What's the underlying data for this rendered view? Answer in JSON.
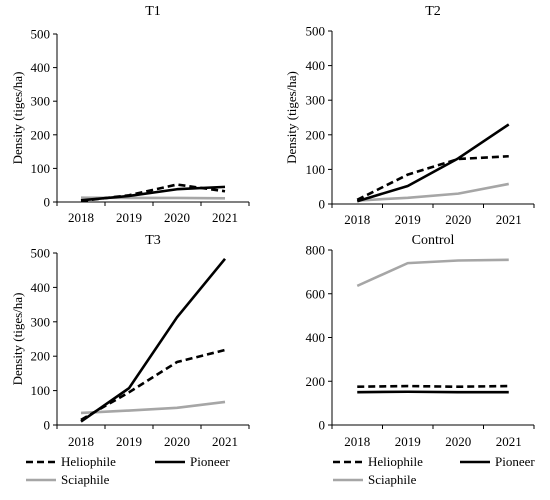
{
  "chart_data": [
    {
      "type": "line",
      "title": "T1",
      "ylabel": "Density (tiges/ha)",
      "xlabel": "",
      "categories": [
        "2018",
        "2019",
        "2020",
        "2021"
      ],
      "ylim": [
        0,
        500
      ],
      "yticks": [
        0,
        100,
        200,
        300,
        400,
        500
      ],
      "series": [
        {
          "name": "Heliophile",
          "values": [
            3,
            20,
            52,
            32
          ],
          "color": "#000000",
          "dash": "dashed"
        },
        {
          "name": "Pioneer",
          "values": [
            5,
            18,
            38,
            45
          ],
          "color": "#000000",
          "dash": "solid"
        },
        {
          "name": "Sciaphile",
          "values": [
            13,
            12,
            12,
            11
          ],
          "color": "#a6a6a6",
          "dash": "solid"
        }
      ]
    },
    {
      "type": "line",
      "title": "T2",
      "ylabel": "Density (tiges/ha)",
      "xlabel": "",
      "categories": [
        "2018",
        "2019",
        "2020",
        "2021"
      ],
      "ylim": [
        0,
        500
      ],
      "yticks": [
        0,
        100,
        200,
        300,
        400,
        500
      ],
      "series": [
        {
          "name": "Heliophile",
          "values": [
            12,
            85,
            130,
            138
          ],
          "color": "#000000",
          "dash": "dashed"
        },
        {
          "name": "Pioneer",
          "values": [
            8,
            52,
            132,
            230
          ],
          "color": "#000000",
          "dash": "solid"
        },
        {
          "name": "Sciaphile",
          "values": [
            10,
            18,
            30,
            58
          ],
          "color": "#a6a6a6",
          "dash": "solid"
        }
      ]
    },
    {
      "type": "line",
      "title": "T3",
      "ylabel": "Density (tiges/ha)",
      "xlabel": "",
      "categories": [
        "2018",
        "2019",
        "2020",
        "2021"
      ],
      "ylim": [
        0,
        500
      ],
      "yticks": [
        0,
        100,
        200,
        300,
        400,
        500
      ],
      "series": [
        {
          "name": "Heliophile",
          "values": [
            15,
            95,
            183,
            218
          ],
          "color": "#000000",
          "dash": "dashed"
        },
        {
          "name": "Pioneer",
          "values": [
            10,
            107,
            313,
            483
          ],
          "color": "#000000",
          "dash": "solid"
        },
        {
          "name": "Sciaphile",
          "values": [
            35,
            42,
            50,
            67
          ],
          "color": "#a6a6a6",
          "dash": "solid"
        }
      ]
    },
    {
      "type": "line",
      "title": "Control",
      "ylabel": "",
      "xlabel": "",
      "categories": [
        "2018",
        "2019",
        "2020",
        "2021"
      ],
      "ylim": [
        0,
        800
      ],
      "yticks": [
        0,
        200,
        400,
        600,
        800
      ],
      "series": [
        {
          "name": "Heliophile",
          "values": [
            175,
            178,
            175,
            178
          ],
          "color": "#000000",
          "dash": "dashed"
        },
        {
          "name": "Pioneer",
          "values": [
            150,
            152,
            150,
            150
          ],
          "color": "#000000",
          "dash": "solid"
        },
        {
          "name": "Sciaphile",
          "values": [
            636,
            740,
            752,
            755
          ],
          "color": "#a6a6a6",
          "dash": "solid"
        }
      ]
    }
  ],
  "legends": [
    {
      "items": [
        {
          "label": "Heliophile",
          "color": "#000000",
          "dash": "dashed"
        },
        {
          "label": "Pioneer",
          "color": "#000000",
          "dash": "solid"
        },
        {
          "label": "Sciaphile",
          "color": "#a6a6a6",
          "dash": "solid"
        }
      ]
    },
    {
      "items": [
        {
          "label": "Heliophile",
          "color": "#000000",
          "dash": "dashed"
        },
        {
          "label": "Pioneer",
          "color": "#000000",
          "dash": "solid"
        },
        {
          "label": "Sciaphile",
          "color": "#a6a6a6",
          "dash": "solid"
        }
      ]
    }
  ]
}
